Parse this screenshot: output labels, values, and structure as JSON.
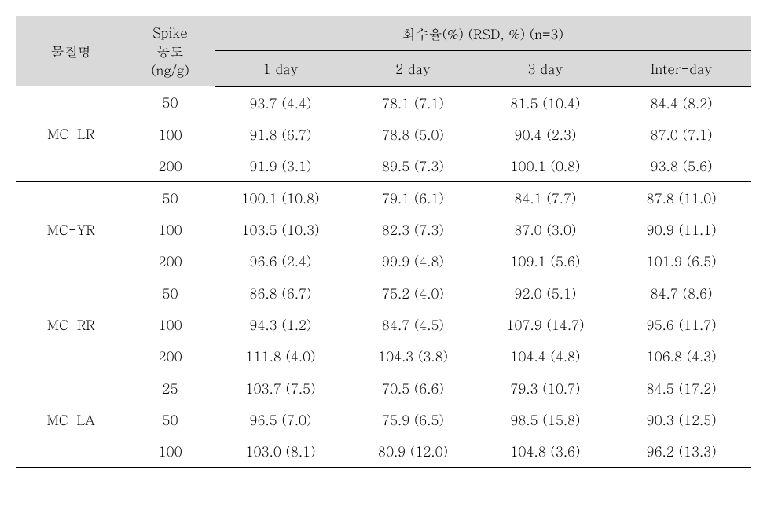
{
  "type": "table",
  "header": {
    "col1": "물질명",
    "col2_line1": "Spike",
    "col2_line2": "농도",
    "col2_line3": "(ng/g)",
    "group_header": "회수율(%) (RSD, %) (n=3)",
    "subcols": [
      "1 day",
      "2 day",
      "3 day",
      "Inter-day"
    ]
  },
  "body": [
    {
      "name": "MC-LR",
      "rows": [
        {
          "spike": "50",
          "day1": "93.7 (4.4)",
          "day2": "78.1 (7.1)",
          "day3": "81.5 (10.4)",
          "inter": "84.4 (8.2)"
        },
        {
          "spike": "100",
          "day1": "91.8 (6.7)",
          "day2": "78.8 (5.0)",
          "day3": "90.4 (2.3)",
          "inter": "87.0 (7.1)"
        },
        {
          "spike": "200",
          "day1": "91.9 (3.1)",
          "day2": "89.5 (7.3)",
          "day3": "100.1 (0.8)",
          "inter": "93.8 (5.6)"
        }
      ]
    },
    {
      "name": "MC-YR",
      "rows": [
        {
          "spike": "50",
          "day1": "100.1 (10.8)",
          "day2": "79.1 (6.1)",
          "day3": "84.1 (7.7)",
          "inter": "87.8 (11.0)"
        },
        {
          "spike": "100",
          "day1": "103.5 (10.3)",
          "day2": "82.3 (7.3)",
          "day3": "87.0 (3.0)",
          "inter": "90.9 (11.1)"
        },
        {
          "spike": "200",
          "day1": "96.6 (2.4)",
          "day2": "99.9 (4.8)",
          "day3": "109.1 (5.6)",
          "inter": "101.9 (6.5)"
        }
      ]
    },
    {
      "name": "MC-RR",
      "rows": [
        {
          "spike": "50",
          "day1": "86.8 (6.7)",
          "day2": "75.2 (4.0)",
          "day3": "92.0 (5.1)",
          "inter": "84.7 (8.6)"
        },
        {
          "spike": "100",
          "day1": "94.3 (1.2)",
          "day2": "84.7 (4.5)",
          "day3": "107.9 (14.7)",
          "inter": "95.6 (11.7)"
        },
        {
          "spike": "200",
          "day1": "111.8 (4.0)",
          "day2": "104.3 (3.8)",
          "day3": "104.4 (4.8)",
          "inter": "106.8 (4.3)"
        }
      ]
    },
    {
      "name": "MC-LA",
      "rows": [
        {
          "spike": "25",
          "day1": "103.7 (7.5)",
          "day2": "70.5 (6.6)",
          "day3": "79.3 (10.7)",
          "inter": "84.5 (17.2)"
        },
        {
          "spike": "50",
          "day1": "96.5 (7.0)",
          "day2": "75.9 (6.5)",
          "day3": "98.5 (15.8)",
          "inter": "90.3 (12.5)"
        },
        {
          "spike": "100",
          "day1": "103.0 (8.1)",
          "day2": "80.9 (12.0)",
          "day3": "104.8 (3.6)",
          "inter": "96.2 (13.3)"
        }
      ]
    }
  ],
  "style": {
    "header_bg": "#d9d9d9",
    "border_color": "#000000",
    "font_size": 17,
    "col_widths_pct": [
      15,
      12,
      18,
      18,
      18,
      19
    ]
  }
}
